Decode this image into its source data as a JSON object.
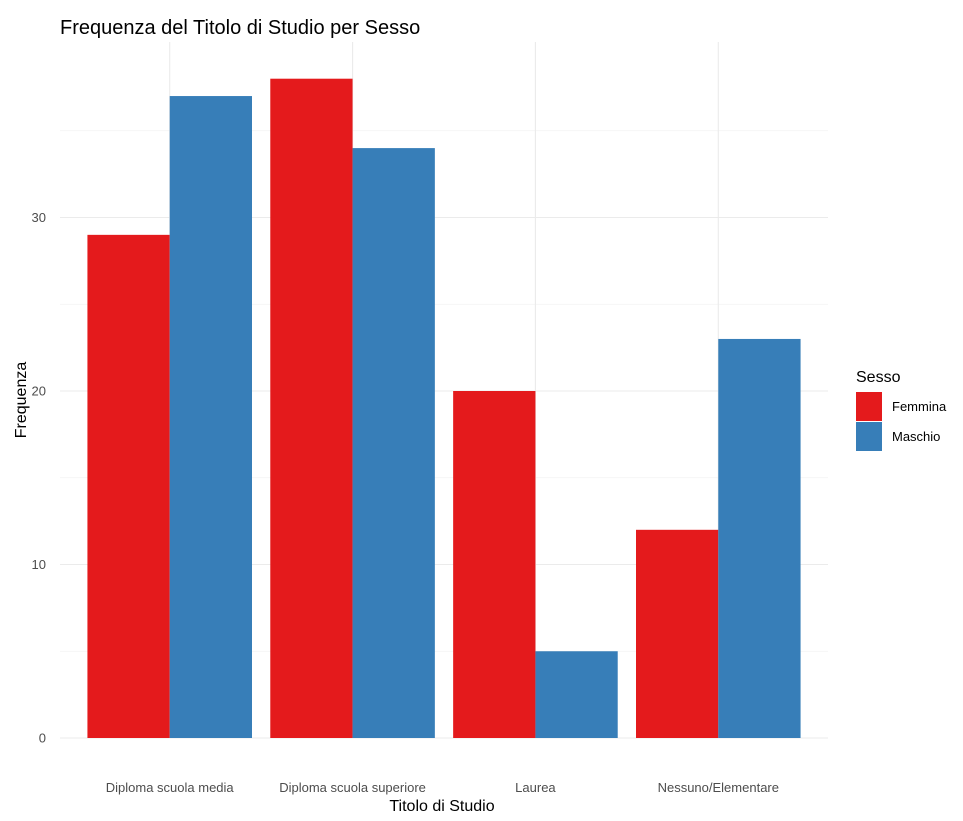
{
  "chart_data": {
    "type": "bar",
    "title": "Frequenza del Titolo di Studio per Sesso",
    "xlabel": "Titolo di Studio",
    "ylabel": "Frequenza",
    "categories": [
      "Diploma scuola media",
      "Diploma scuola superiore",
      "Laurea",
      "Nessuno/Elementare"
    ],
    "series": [
      {
        "name": "Femmina",
        "color": "#E41A1C",
        "values": [
          29,
          38,
          20,
          12
        ]
      },
      {
        "name": "Maschio",
        "color": "#377EB8",
        "values": [
          37,
          34,
          5,
          23
        ]
      }
    ],
    "ylim": [
      0,
      40
    ],
    "yticks": [
      "0",
      "10",
      "20",
      "30"
    ],
    "legend": {
      "title": "Sesso",
      "position": "right"
    },
    "grid": true
  }
}
